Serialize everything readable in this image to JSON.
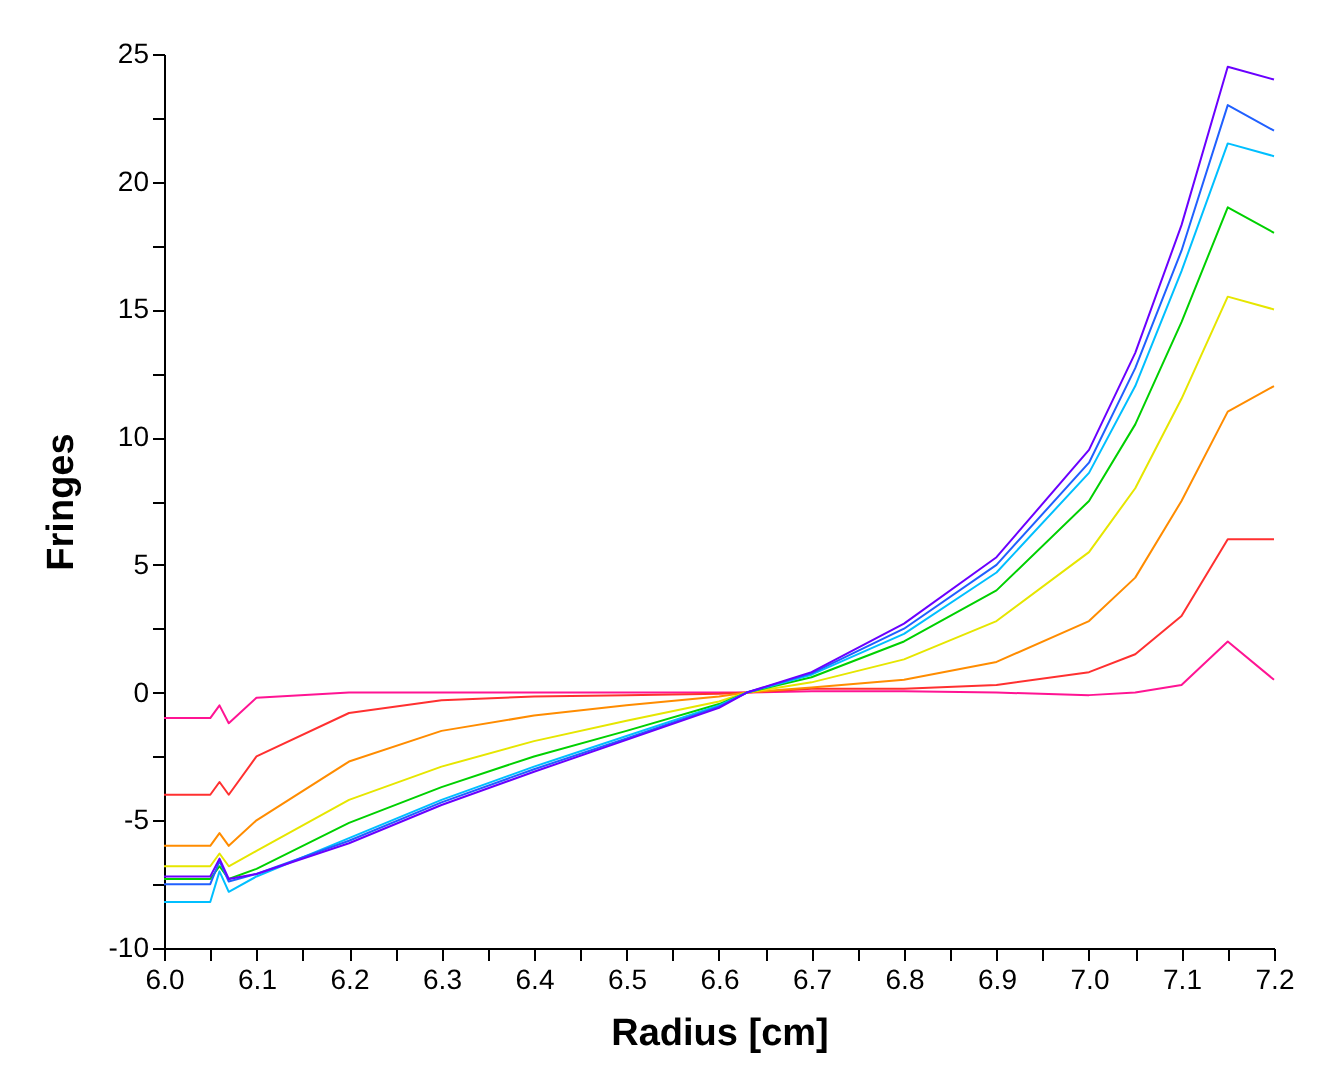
{
  "chart_data": {
    "type": "line",
    "xlabel": "Radius [cm]",
    "ylabel": "Fringes",
    "x": [
      6.0,
      6.05,
      6.06,
      6.07,
      6.1,
      6.2,
      6.3,
      6.4,
      6.5,
      6.6,
      6.63,
      6.7,
      6.8,
      6.9,
      7.0,
      7.05,
      7.1,
      7.15,
      7.2
    ],
    "xlim": [
      6.0,
      7.2
    ],
    "ylim": [
      -10,
      25
    ],
    "xticks": [
      {
        "value": 6.0,
        "label": "6.0"
      },
      {
        "value": 6.05,
        "label": null
      },
      {
        "value": 6.1,
        "label": "6.1"
      },
      {
        "value": 6.15,
        "label": null
      },
      {
        "value": 6.2,
        "label": "6.2"
      },
      {
        "value": 6.25,
        "label": null
      },
      {
        "value": 6.3,
        "label": "6.3"
      },
      {
        "value": 6.35,
        "label": null
      },
      {
        "value": 6.4,
        "label": "6.4"
      },
      {
        "value": 6.45,
        "label": null
      },
      {
        "value": 6.5,
        "label": "6.5"
      },
      {
        "value": 6.55,
        "label": null
      },
      {
        "value": 6.6,
        "label": "6.6"
      },
      {
        "value": 6.65,
        "label": null
      },
      {
        "value": 6.7,
        "label": "6.7"
      },
      {
        "value": 6.75,
        "label": null
      },
      {
        "value": 6.8,
        "label": "6.8"
      },
      {
        "value": 6.85,
        "label": null
      },
      {
        "value": 6.9,
        "label": "6.9"
      },
      {
        "value": 6.95,
        "label": null
      },
      {
        "value": 7.0,
        "label": "7.0"
      },
      {
        "value": 7.05,
        "label": null
      },
      {
        "value": 7.1,
        "label": "7.1"
      },
      {
        "value": 7.15,
        "label": null
      },
      {
        "value": 7.2,
        "label": "7.2"
      }
    ],
    "yticks": [
      -10,
      {
        "value": -7.5,
        "label": null
      },
      -5,
      {
        "value": -2.5,
        "label": null
      },
      0,
      {
        "value": 2.5,
        "label": null
      },
      5,
      {
        "value": 7.5,
        "label": null
      },
      10,
      {
        "value": 12.5,
        "label": null
      },
      15,
      {
        "value": 17.5,
        "label": null
      },
      20,
      {
        "value": 22.5,
        "label": null
      },
      25
    ],
    "series": [
      {
        "color": "#ff1493",
        "values": [
          -1,
          -1,
          -0.5,
          -1.2,
          -0.2,
          0,
          0,
          0,
          0,
          0,
          0,
          0.05,
          0.05,
          0,
          -0.1,
          0,
          0.3,
          2,
          0.5
        ]
      },
      {
        "color": "#ff3030",
        "values": [
          -4,
          -4,
          -3.5,
          -4,
          -2.5,
          -0.8,
          -0.3,
          -0.15,
          -0.1,
          -0.05,
          0,
          0.15,
          0.15,
          0.3,
          0.8,
          1.5,
          3,
          6,
          6
        ]
      },
      {
        "color": "#ff8c00",
        "values": [
          -6,
          -6,
          -5.5,
          -6,
          -5,
          -2.7,
          -1.5,
          -0.9,
          -0.5,
          -0.15,
          0,
          0.2,
          0.5,
          1.2,
          2.8,
          4.5,
          7.5,
          11,
          12
        ]
      },
      {
        "color": "#e6e600",
        "values": [
          -6.8,
          -6.8,
          -6.3,
          -6.8,
          -6.2,
          -4.2,
          -2.9,
          -1.9,
          -1.1,
          -0.35,
          0,
          0.4,
          1.3,
          2.8,
          5.5,
          8,
          11.5,
          15.5,
          15
        ]
      },
      {
        "color": "#00d000",
        "values": [
          -7.3,
          -7.3,
          -6.8,
          -7.3,
          -6.9,
          -5.1,
          -3.7,
          -2.5,
          -1.5,
          -0.45,
          0,
          0.6,
          2,
          4,
          7.5,
          10.5,
          14.5,
          19,
          18
        ]
      },
      {
        "color": "#00bfff",
        "values": [
          -8.2,
          -8.2,
          -7.0,
          -7.8,
          -7.2,
          -5.7,
          -4.2,
          -2.9,
          -1.7,
          -0.5,
          0,
          0.7,
          2.3,
          4.7,
          8.6,
          12,
          16.5,
          21.5,
          21
        ]
      },
      {
        "color": "#2060ff",
        "values": [
          -7.5,
          -7.5,
          -6.6,
          -7.4,
          -7.1,
          -5.8,
          -4.3,
          -3,
          -1.8,
          -0.55,
          0,
          0.75,
          2.5,
          5,
          9,
          12.7,
          17.3,
          23,
          22
        ]
      },
      {
        "color": "#6a00ff",
        "values": [
          -7.2,
          -7.2,
          -6.5,
          -7.3,
          -7.1,
          -5.9,
          -4.4,
          -3.1,
          -1.85,
          -0.6,
          0,
          0.8,
          2.7,
          5.3,
          9.5,
          13.3,
          18.3,
          24.5,
          24
        ]
      }
    ]
  }
}
